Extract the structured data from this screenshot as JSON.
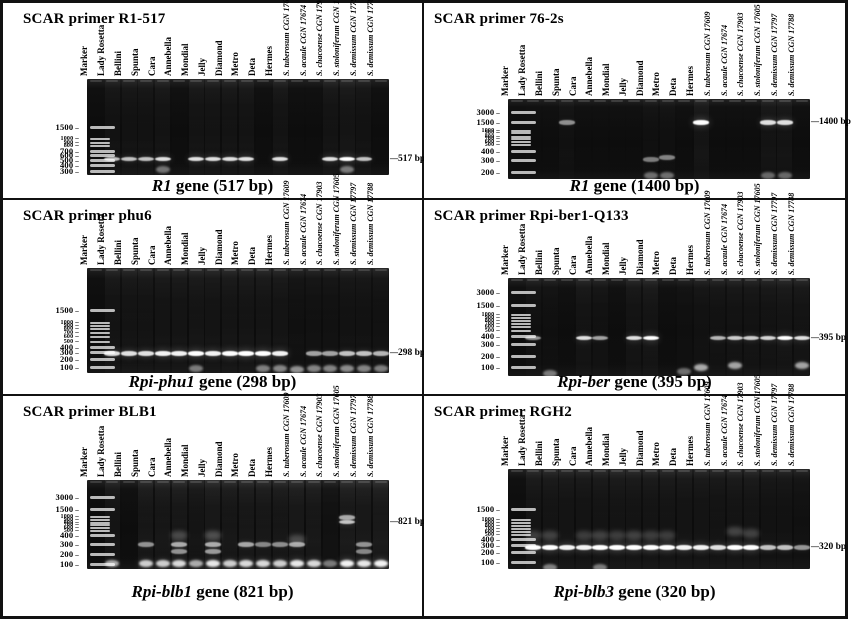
{
  "figure": {
    "type": "gel-electrophoresis-figure",
    "background_color": "#ffffff",
    "gel_color": "#0d0d0d",
    "border_color": "#111111",
    "band_color": "#ffffff"
  },
  "lanes": {
    "marker": "Marker",
    "samples": [
      {
        "name": "Lady Rosetta",
        "italic": false
      },
      {
        "name": "Bellini",
        "italic": false
      },
      {
        "name": "Spunta",
        "italic": false
      },
      {
        "name": "Cara",
        "italic": false
      },
      {
        "name": "Annebella",
        "italic": false
      },
      {
        "name": "Mondial",
        "italic": false
      },
      {
        "name": "Jelly",
        "italic": false
      },
      {
        "name": "Diamond",
        "italic": false
      },
      {
        "name": "Metro",
        "italic": false
      },
      {
        "name": "Deta",
        "italic": false
      },
      {
        "name": "Hermes",
        "italic": false
      },
      {
        "name": "S. tuberosum CGN 17609",
        "italic": true
      },
      {
        "name": "S. acaule CGN 17674",
        "italic": true
      },
      {
        "name": "S. chacoense CGN 17903",
        "italic": true
      },
      {
        "name": "S. stoloniferum CGN 17605",
        "italic": true
      },
      {
        "name": "S. demissum CGN 17797",
        "italic": true
      },
      {
        "name": "S. demissum CGN 17788",
        "italic": true
      }
    ]
  },
  "panels": [
    {
      "title": "SCAR primer R1-517",
      "caption": {
        "gene": "R1",
        "rest": " gene (517 bp)"
      },
      "band_annotation": "517 bp",
      "ladder": [
        {
          "label": "1500",
          "y": 50,
          "small": false
        },
        {
          "label": "1000",
          "y": 63,
          "small": true
        },
        {
          "label": "900",
          "y": 67,
          "small": true
        },
        {
          "label": "800",
          "y": 70,
          "small": true
        },
        {
          "label": "700",
          "y": 75,
          "small": false
        },
        {
          "label": "600",
          "y": 79,
          "small": false
        },
        {
          "label": "500",
          "y": 84,
          "small": false
        },
        {
          "label": "400",
          "y": 90,
          "small": false
        },
        {
          "label": "300",
          "y": 96,
          "small": false
        }
      ],
      "main_band": {
        "y": 83,
        "intensities": [
          2,
          2,
          2,
          2.5,
          0,
          2.5,
          2.5,
          2.5,
          2.5,
          0,
          2.5,
          0,
          0,
          2.5,
          3,
          2,
          0
        ]
      },
      "extra_bands": [
        {
          "lane": 3,
          "y": 93,
          "i": 0.7,
          "kind": "blob"
        },
        {
          "lane": 14,
          "y": 93,
          "i": 0.8,
          "kind": "blob"
        }
      ]
    },
    {
      "title": "SCAR primer 76-2s",
      "caption": {
        "gene": "R1",
        "rest": " gene (1400 bp)"
      },
      "band_annotation": "1400 bp",
      "ladder": [
        {
          "label": "3000",
          "y": 16,
          "small": false
        },
        {
          "label": "1500",
          "y": 29,
          "small": false
        },
        {
          "label": "1000",
          "y": 40,
          "small": true
        },
        {
          "label": "900",
          "y": 43,
          "small": true
        },
        {
          "label": "800",
          "y": 47,
          "small": true
        },
        {
          "label": "700",
          "y": 50,
          "small": true
        },
        {
          "label": "600",
          "y": 54,
          "small": true
        },
        {
          "label": "500",
          "y": 58,
          "small": true
        },
        {
          "label": "400",
          "y": 65,
          "small": false
        },
        {
          "label": "300",
          "y": 76,
          "small": false
        },
        {
          "label": "200",
          "y": 91,
          "small": false
        }
      ],
      "main_band": {
        "y": 29,
        "intensities": [
          0,
          0,
          1.2,
          0,
          0,
          0,
          0,
          0,
          0,
          0,
          3,
          0,
          0,
          0,
          2.5,
          2.5,
          0
        ]
      },
      "extra_bands": [
        {
          "lane": 7,
          "y": 75,
          "i": 0.9,
          "kind": "band"
        },
        {
          "lane": 8,
          "y": 73,
          "i": 1.0,
          "kind": "band"
        },
        {
          "lane": 7,
          "y": 94,
          "i": 0.6,
          "kind": "blob"
        },
        {
          "lane": 8,
          "y": 94,
          "i": 0.6,
          "kind": "blob"
        },
        {
          "lane": 14,
          "y": 94,
          "i": 0.5,
          "kind": "blob"
        },
        {
          "lane": 15,
          "y": 94,
          "i": 0.5,
          "kind": "blob"
        }
      ]
    },
    {
      "title": "SCAR primer phu6",
      "caption": {
        "gene": "Rpi-phu1",
        "rest": " gene (298 bp)"
      },
      "band_annotation": "298 bp",
      "ladder": [
        {
          "label": "1500",
          "y": 40,
          "small": false
        },
        {
          "label": "1000",
          "y": 52,
          "small": true
        },
        {
          "label": "900",
          "y": 55,
          "small": true
        },
        {
          "label": "800",
          "y": 58,
          "small": true
        },
        {
          "label": "700",
          "y": 62,
          "small": true
        },
        {
          "label": "600",
          "y": 66,
          "small": true
        },
        {
          "label": "500",
          "y": 70,
          "small": true
        },
        {
          "label": "400",
          "y": 75,
          "small": false
        },
        {
          "label": "300",
          "y": 80,
          "small": false
        },
        {
          "label": "200",
          "y": 87,
          "small": false
        },
        {
          "label": "100",
          "y": 94,
          "small": false
        }
      ],
      "main_band": {
        "y": 81,
        "intensities": [
          2.5,
          2.5,
          2.5,
          2.8,
          2.8,
          3,
          2.8,
          3,
          3,
          3,
          2.8,
          0,
          1.5,
          1.5,
          2,
          2,
          1.8
        ]
      },
      "extra_bands": [
        {
          "lane": 5,
          "y": 94,
          "i": 0.8,
          "kind": "blob"
        },
        {
          "lane": 9,
          "y": 94,
          "i": 0.9,
          "kind": "blob"
        },
        {
          "lane": 10,
          "y": 94,
          "i": 1.0,
          "kind": "blob"
        },
        {
          "lane": 11,
          "y": 95,
          "i": 1.2,
          "kind": "blob"
        },
        {
          "lane": 12,
          "y": 94,
          "i": 1.0,
          "kind": "blob"
        },
        {
          "lane": 13,
          "y": 94,
          "i": 1.0,
          "kind": "blob"
        },
        {
          "lane": 14,
          "y": 94,
          "i": 1.1,
          "kind": "blob"
        },
        {
          "lane": 15,
          "y": 94,
          "i": 1.0,
          "kind": "blob"
        },
        {
          "lane": 16,
          "y": 94,
          "i": 0.9,
          "kind": "blob"
        }
      ]
    },
    {
      "title": "SCAR primer Rpi-ber1-Q133",
      "caption": {
        "gene": "Rpi-ber",
        "rest": " gene (395 bp)"
      },
      "band_annotation": "395 bp",
      "ladder": [
        {
          "label": "3000",
          "y": 14,
          "small": false
        },
        {
          "label": "1500",
          "y": 28,
          "small": false
        },
        {
          "label": "1000",
          "y": 38,
          "small": true
        },
        {
          "label": "900",
          "y": 41,
          "small": true
        },
        {
          "label": "800",
          "y": 44,
          "small": true
        },
        {
          "label": "700",
          "y": 47,
          "small": true
        },
        {
          "label": "600",
          "y": 50,
          "small": true
        },
        {
          "label": "500",
          "y": 54,
          "small": true
        },
        {
          "label": "400",
          "y": 59,
          "small": false
        },
        {
          "label": "300",
          "y": 67,
          "small": false
        },
        {
          "label": "200",
          "y": 80,
          "small": false
        },
        {
          "label": "100",
          "y": 91,
          "small": false
        }
      ],
      "main_band": {
        "y": 61,
        "intensities": [
          1.3,
          0,
          0,
          2.5,
          1.5,
          0,
          2.5,
          3,
          0,
          0,
          0,
          1.8,
          2.2,
          2.2,
          2.3,
          3,
          2.5
        ]
      },
      "extra_bands": [
        {
          "lane": 1,
          "y": 96,
          "i": 0.8,
          "kind": "blob"
        },
        {
          "lane": 9,
          "y": 94,
          "i": 0.6,
          "kind": "blob"
        },
        {
          "lane": 10,
          "y": 90,
          "i": 1.6,
          "kind": "blob"
        },
        {
          "lane": 12,
          "y": 88,
          "i": 1.5,
          "kind": "blob"
        },
        {
          "lane": 16,
          "y": 88,
          "i": 1.5,
          "kind": "blob"
        }
      ]
    },
    {
      "title": "SCAR primer BLB1",
      "caption": {
        "gene": "Rpi-blb1",
        "rest": " gene (821 bp)"
      },
      "band_annotation": "821 bp",
      "ladder": [
        {
          "label": "3000",
          "y": 19,
          "small": false
        },
        {
          "label": "1500",
          "y": 33,
          "small": false
        },
        {
          "label": "1000",
          "y": 42,
          "small": true
        },
        {
          "label": "900",
          "y": 45,
          "small": true
        },
        {
          "label": "800",
          "y": 48,
          "small": true
        },
        {
          "label": "700",
          "y": 51,
          "small": true
        },
        {
          "label": "600",
          "y": 54,
          "small": true
        },
        {
          "label": "500",
          "y": 57,
          "small": true
        },
        {
          "label": "400",
          "y": 62,
          "small": false
        },
        {
          "label": "300",
          "y": 72,
          "small": false
        },
        {
          "label": "200",
          "y": 83,
          "small": false
        },
        {
          "label": "100",
          "y": 94,
          "small": false
        }
      ],
      "main_band": {
        "y": 47,
        "intensities": [
          0,
          0,
          0,
          0,
          0,
          0,
          0,
          0,
          0,
          0,
          0,
          0,
          0,
          0,
          2,
          0,
          0
        ]
      },
      "extra_bands": [
        {
          "lane": 0,
          "y": 92,
          "i": 1.6,
          "kind": "blob"
        },
        {
          "lane": 2,
          "y": 92,
          "i": 2.2,
          "kind": "blob"
        },
        {
          "lane": 3,
          "y": 92,
          "i": 2.2,
          "kind": "blob"
        },
        {
          "lane": 4,
          "y": 92,
          "i": 2.4,
          "kind": "blob"
        },
        {
          "lane": 5,
          "y": 92,
          "i": 1.6,
          "kind": "blob"
        },
        {
          "lane": 6,
          "y": 92,
          "i": 2.6,
          "kind": "blob"
        },
        {
          "lane": 7,
          "y": 92,
          "i": 2.2,
          "kind": "blob"
        },
        {
          "lane": 8,
          "y": 92,
          "i": 2.4,
          "kind": "blob"
        },
        {
          "lane": 9,
          "y": 92,
          "i": 2.4,
          "kind": "blob"
        },
        {
          "lane": 10,
          "y": 92,
          "i": 2.2,
          "kind": "blob"
        },
        {
          "lane": 11,
          "y": 92,
          "i": 2.6,
          "kind": "blob"
        },
        {
          "lane": 12,
          "y": 92,
          "i": 2.4,
          "kind": "blob"
        },
        {
          "lane": 13,
          "y": 92,
          "i": 0.8,
          "kind": "blob"
        },
        {
          "lane": 14,
          "y": 92,
          "i": 2.8,
          "kind": "blob"
        },
        {
          "lane": 15,
          "y": 92,
          "i": 2.6,
          "kind": "blob"
        },
        {
          "lane": 16,
          "y": 92,
          "i": 2.8,
          "kind": "blob"
        },
        {
          "lane": 2,
          "y": 72,
          "i": 1.2,
          "kind": "band"
        },
        {
          "lane": 4,
          "y": 72,
          "i": 1.6,
          "kind": "band"
        },
        {
          "lane": 6,
          "y": 72,
          "i": 1.6,
          "kind": "band"
        },
        {
          "lane": 8,
          "y": 72,
          "i": 1.5,
          "kind": "band"
        },
        {
          "lane": 9,
          "y": 72,
          "i": 1.0,
          "kind": "band"
        },
        {
          "lane": 10,
          "y": 72,
          "i": 1.1,
          "kind": "band"
        },
        {
          "lane": 11,
          "y": 72,
          "i": 1.5,
          "kind": "band"
        },
        {
          "lane": 15,
          "y": 72,
          "i": 1.2,
          "kind": "band"
        },
        {
          "lane": 4,
          "y": 80,
          "i": 1.2,
          "kind": "band"
        },
        {
          "lane": 6,
          "y": 80,
          "i": 1.3,
          "kind": "band"
        },
        {
          "lane": 15,
          "y": 80,
          "i": 1.0,
          "kind": "band"
        },
        {
          "lane": 4,
          "y": 60,
          "i": 0.8,
          "kind": "soft"
        },
        {
          "lane": 6,
          "y": 60,
          "i": 0.9,
          "kind": "soft"
        },
        {
          "lane": 11,
          "y": 64,
          "i": 0.8,
          "kind": "soft"
        },
        {
          "lane": 14,
          "y": 42,
          "i": 1.5,
          "kind": "band"
        }
      ]
    },
    {
      "title": "SCAR primer RGH2",
      "caption": {
        "gene": "Rpi-blb3",
        "rest": " gene (320 bp)"
      },
      "band_annotation": "320 bp",
      "ladder": [
        {
          "label": "1500",
          "y": 40,
          "small": false
        },
        {
          "label": "1000",
          "y": 51,
          "small": true
        },
        {
          "label": "900",
          "y": 54,
          "small": true
        },
        {
          "label": "800",
          "y": 57,
          "small": true
        },
        {
          "label": "700",
          "y": 60,
          "small": true
        },
        {
          "label": "600",
          "y": 63,
          "small": true
        },
        {
          "label": "500",
          "y": 66,
          "small": true
        },
        {
          "label": "400",
          "y": 70,
          "small": false
        },
        {
          "label": "300",
          "y": 76,
          "small": false
        },
        {
          "label": "200",
          "y": 83,
          "small": false
        },
        {
          "label": "100",
          "y": 93,
          "small": false
        }
      ],
      "main_band": {
        "y": 78,
        "intensities": [
          3,
          3,
          2.8,
          2.8,
          3,
          3,
          3,
          3,
          3,
          2.8,
          2.8,
          2.5,
          3,
          3,
          2,
          2,
          1.3
        ]
      },
      "extra_bands": [
        {
          "lane": 1,
          "y": 97,
          "i": 0.9,
          "kind": "blob"
        },
        {
          "lane": 4,
          "y": 97,
          "i": 0.8,
          "kind": "blob"
        },
        {
          "lane": 0,
          "y": 64,
          "i": 0.5,
          "kind": "soft"
        },
        {
          "lane": 1,
          "y": 64,
          "i": 0.6,
          "kind": "soft"
        },
        {
          "lane": 3,
          "y": 64,
          "i": 0.5,
          "kind": "soft"
        },
        {
          "lane": 4,
          "y": 64,
          "i": 0.6,
          "kind": "soft"
        },
        {
          "lane": 5,
          "y": 64,
          "i": 0.5,
          "kind": "soft"
        },
        {
          "lane": 6,
          "y": 64,
          "i": 0.6,
          "kind": "soft"
        },
        {
          "lane": 7,
          "y": 64,
          "i": 0.5,
          "kind": "soft"
        },
        {
          "lane": 8,
          "y": 64,
          "i": 0.5,
          "kind": "soft"
        },
        {
          "lane": 12,
          "y": 60,
          "i": 0.7,
          "kind": "soft"
        },
        {
          "lane": 13,
          "y": 62,
          "i": 0.6,
          "kind": "soft"
        }
      ]
    }
  ]
}
